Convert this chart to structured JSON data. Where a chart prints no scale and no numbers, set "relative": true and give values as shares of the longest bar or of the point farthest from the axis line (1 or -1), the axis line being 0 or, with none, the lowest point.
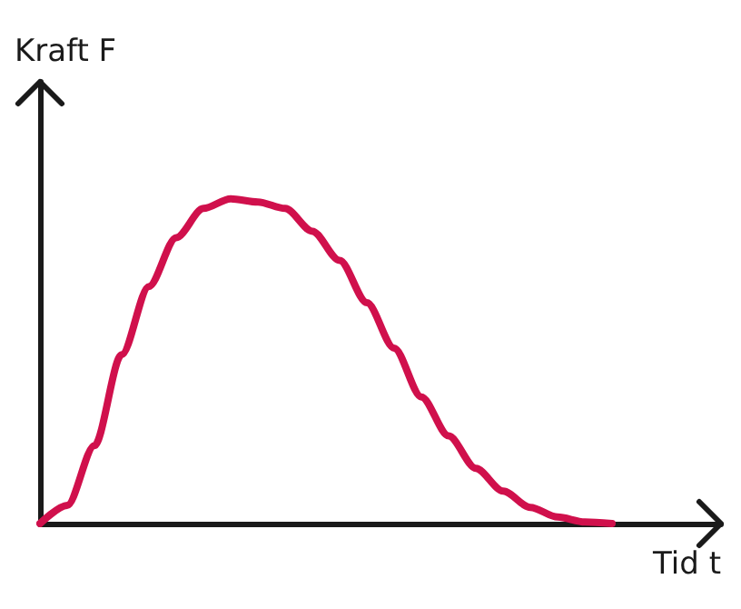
{
  "chart_data": {
    "type": "line",
    "xlabel": "Tid t",
    "ylabel": "Kraft F",
    "relative": true,
    "marker": "none",
    "categories": [
      null,
      null,
      null,
      null,
      null,
      null,
      null,
      null,
      null,
      null,
      null,
      null,
      null,
      null,
      null,
      null,
      null,
      null,
      null,
      null,
      null,
      null,
      null,
      null,
      null,
      null
    ],
    "series": [
      {
        "color": "#d0104c",
        "values": [
          0,
          0.056,
          0.24,
          0.52,
          0.73,
          0.88,
          0.97,
          1,
          0.99,
          0.97,
          0.9,
          0.81,
          0.68,
          0.54,
          0.39,
          0.27,
          0.17,
          0.1,
          0.05,
          0.02,
          0.005,
          0,
          null,
          null,
          null,
          null
        ]
      }
    ]
  }
}
